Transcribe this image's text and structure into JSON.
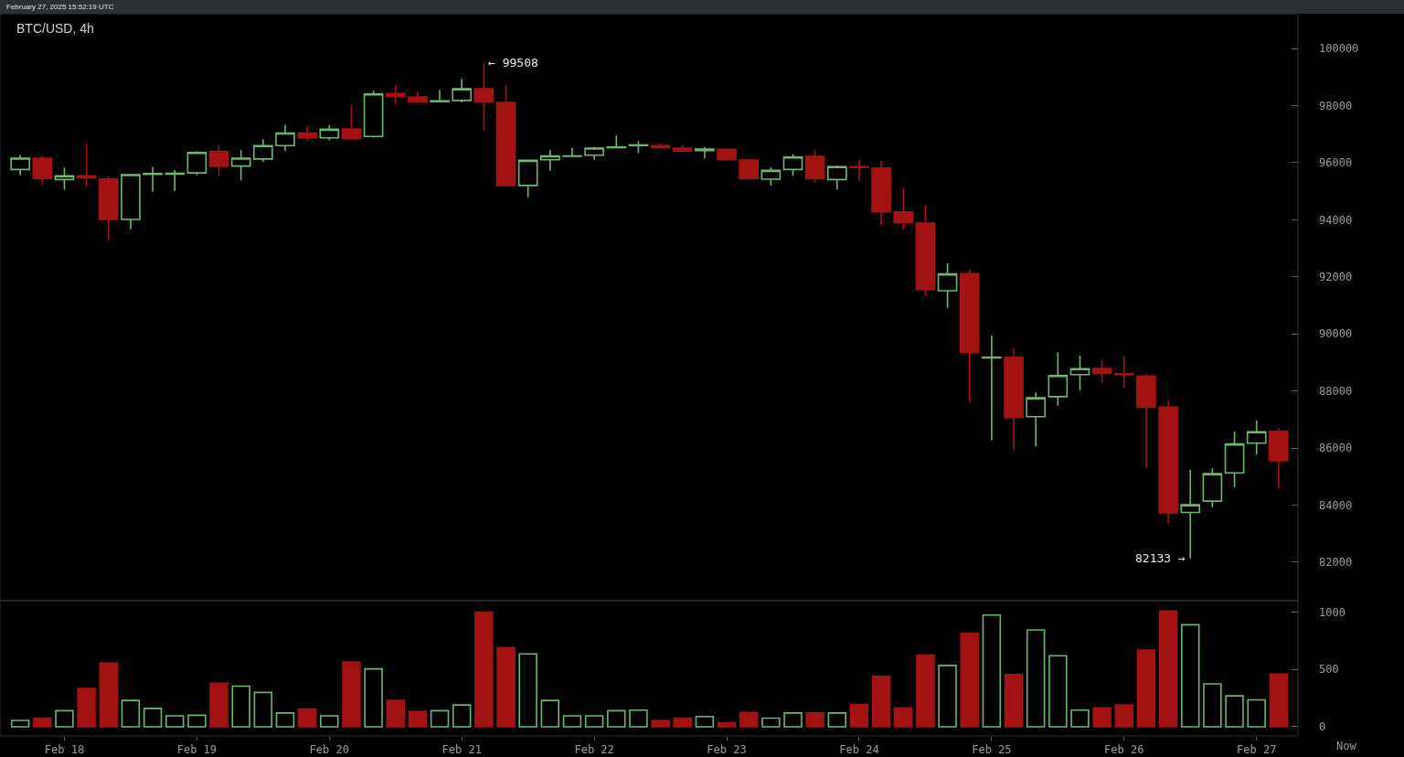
{
  "chart_data": [
    {
      "type": "candlestick",
      "title": "BTC/USD, 4h",
      "annotations": [
        "February 27, 2025 15:52:19 UTC",
        {
          "text": "← 99508",
          "x": "2025-02-21T04:00",
          "y": 99508
        },
        {
          "text": "82133 →",
          "x": "2025-02-26T12:00",
          "y": 82133
        }
      ],
      "x": [
        "2025-02-17T16:00",
        "2025-02-17T20:00",
        "2025-02-18T00:00",
        "2025-02-18T04:00",
        "2025-02-18T08:00",
        "2025-02-18T12:00",
        "2025-02-18T16:00",
        "2025-02-18T20:00",
        "2025-02-19T00:00",
        "2025-02-19T04:00",
        "2025-02-19T08:00",
        "2025-02-19T12:00",
        "2025-02-19T16:00",
        "2025-02-19T20:00",
        "2025-02-20T00:00",
        "2025-02-20T04:00",
        "2025-02-20T08:00",
        "2025-02-20T12:00",
        "2025-02-20T16:00",
        "2025-02-20T20:00",
        "2025-02-21T00:00",
        "2025-02-21T04:00",
        "2025-02-21T08:00",
        "2025-02-21T12:00",
        "2025-02-21T16:00",
        "2025-02-21T20:00",
        "2025-02-22T00:00",
        "2025-02-22T04:00",
        "2025-02-22T08:00",
        "2025-02-22T12:00",
        "2025-02-22T16:00",
        "2025-02-22T20:00",
        "2025-02-23T00:00",
        "2025-02-23T04:00",
        "2025-02-23T08:00",
        "2025-02-23T12:00",
        "2025-02-23T16:00",
        "2025-02-23T20:00",
        "2025-02-24T00:00",
        "2025-02-24T04:00",
        "2025-02-24T08:00",
        "2025-02-24T12:00",
        "2025-02-24T16:00",
        "2025-02-24T20:00",
        "2025-02-25T00:00",
        "2025-02-25T04:00",
        "2025-02-25T08:00",
        "2025-02-25T12:00",
        "2025-02-25T16:00",
        "2025-02-25T20:00",
        "2025-02-26T00:00",
        "2025-02-26T04:00",
        "2025-02-26T08:00",
        "2025-02-26T12:00",
        "2025-02-26T16:00",
        "2025-02-26T20:00",
        "2025-02-27T00:00",
        "2025-02-27T04:00"
      ],
      "ohlc": [
        [
          95760,
          96270,
          95560,
          96160
        ],
        [
          96160,
          96230,
          95240,
          95450
        ],
        [
          95410,
          95830,
          95060,
          95540
        ],
        [
          95540,
          96680,
          95150,
          95480
        ],
        [
          95430,
          95540,
          93300,
          94010
        ],
        [
          94010,
          95580,
          93670,
          95580
        ],
        [
          95590,
          95850,
          94980,
          95620
        ],
        [
          95600,
          95740,
          95010,
          95630
        ],
        [
          95640,
          96400,
          95560,
          96360
        ],
        [
          96390,
          96630,
          95530,
          95870
        ],
        [
          95880,
          96440,
          95380,
          96160
        ],
        [
          96130,
          96820,
          96030,
          96600
        ],
        [
          96600,
          97330,
          96410,
          97040
        ],
        [
          97040,
          97270,
          96770,
          96880
        ],
        [
          96870,
          97320,
          96790,
          97170
        ],
        [
          97180,
          98020,
          96810,
          96840
        ],
        [
          96920,
          98520,
          96880,
          98410
        ],
        [
          98420,
          98730,
          98040,
          98310
        ],
        [
          98300,
          98490,
          98120,
          98120
        ],
        [
          98140,
          98550,
          98120,
          98170
        ],
        [
          98180,
          98930,
          98110,
          98590
        ],
        [
          98590,
          99508,
          97130,
          98120
        ],
        [
          98110,
          98740,
          95160,
          95200
        ],
        [
          95200,
          96080,
          94790,
          96080
        ],
        [
          96100,
          96440,
          95720,
          96240
        ],
        [
          96220,
          96510,
          96200,
          96240
        ],
        [
          96260,
          96550,
          96100,
          96510
        ],
        [
          96530,
          96950,
          96510,
          96550
        ],
        [
          96600,
          96760,
          96330,
          96620
        ],
        [
          96600,
          96680,
          96510,
          96530
        ],
        [
          96510,
          96620,
          96390,
          96410
        ],
        [
          96420,
          96540,
          96150,
          96480
        ],
        [
          96470,
          96470,
          96100,
          96100
        ],
        [
          96090,
          96110,
          95420,
          95450
        ],
        [
          95420,
          95830,
          95200,
          95730
        ],
        [
          95760,
          96290,
          95530,
          96200
        ],
        [
          96220,
          96440,
          95310,
          95440
        ],
        [
          95410,
          95900,
          95050,
          95860
        ],
        [
          95860,
          96110,
          95370,
          95830
        ],
        [
          95810,
          96060,
          93820,
          94280
        ],
        [
          94270,
          95130,
          93670,
          93890
        ],
        [
          93880,
          94510,
          91310,
          91550
        ],
        [
          91510,
          92470,
          90910,
          92100
        ],
        [
          92110,
          92260,
          87600,
          89340
        ],
        [
          89160,
          89940,
          86270,
          89180
        ],
        [
          89180,
          89500,
          85950,
          87070
        ],
        [
          87100,
          87950,
          86060,
          87760
        ],
        [
          87800,
          89360,
          87480,
          88540
        ],
        [
          88570,
          89240,
          88030,
          88780
        ],
        [
          88790,
          89080,
          88290,
          88610
        ],
        [
          88600,
          89230,
          88110,
          88570
        ],
        [
          88520,
          88590,
          85310,
          87430
        ],
        [
          87430,
          87660,
          83350,
          83730
        ],
        [
          83740,
          85230,
          82133,
          84010
        ],
        [
          84140,
          85290,
          83920,
          85100
        ],
        [
          85130,
          86580,
          84620,
          86140
        ],
        [
          86170,
          86970,
          85780,
          86570
        ],
        [
          86580,
          86700,
          84580,
          85550
        ]
      ],
      "colors": [
        "#6fb66f",
        "#a31313",
        "#6fb66f",
        "#a31313",
        "#a31313",
        "#6fb66f",
        "#6fb66f",
        "#6fb66f",
        "#6fb66f",
        "#a31313",
        "#6fb66f",
        "#6fb66f",
        "#6fb66f",
        "#a31313",
        "#6fb66f",
        "#a31313",
        "#6fb66f",
        "#a31313",
        "#a31313",
        "#6fb66f",
        "#6fb66f",
        "#a31313",
        "#a31313",
        "#6fb66f",
        "#6fb66f",
        "#6fb66f",
        "#6fb66f",
        "#6fb66f",
        "#6fb66f",
        "#a31313",
        "#a31313",
        "#6fb66f",
        "#a31313",
        "#a31313",
        "#6fb66f",
        "#6fb66f",
        "#a31313",
        "#6fb66f",
        "#a31313",
        "#a31313",
        "#a31313",
        "#a31313",
        "#6fb66f",
        "#a31313",
        "#6fb66f",
        "#a31313",
        "#6fb66f",
        "#6fb66f",
        "#6fb66f",
        "#a31313",
        "#a31313",
        "#a31313",
        "#a31313",
        "#6fb66f",
        "#6fb66f",
        "#6fb66f",
        "#6fb66f",
        "#a31313"
      ],
      "xlim": [
        "2025-02-17T12:20",
        "2025-02-27T07:30"
      ],
      "ylim": [
        80650,
        101220
      ],
      "yticks": [
        82000,
        84000,
        86000,
        88000,
        90000,
        92000,
        94000,
        96000,
        98000,
        100000
      ],
      "tick_labels": "y",
      "grid": false
    },
    {
      "type": "bar",
      "annotations": [
        "Now"
      ],
      "x": [
        "2025-02-17T16:00",
        "2025-02-17T20:00",
        "2025-02-18T00:00",
        "2025-02-18T04:00",
        "2025-02-18T08:00",
        "2025-02-18T12:00",
        "2025-02-18T16:00",
        "2025-02-18T20:00",
        "2025-02-19T00:00",
        "2025-02-19T04:00",
        "2025-02-19T08:00",
        "2025-02-19T12:00",
        "2025-02-19T16:00",
        "2025-02-19T20:00",
        "2025-02-20T00:00",
        "2025-02-20T04:00",
        "2025-02-20T08:00",
        "2025-02-20T12:00",
        "2025-02-20T16:00",
        "2025-02-20T20:00",
        "2025-02-21T00:00",
        "2025-02-21T04:00",
        "2025-02-21T08:00",
        "2025-02-21T12:00",
        "2025-02-21T16:00",
        "2025-02-21T20:00",
        "2025-02-22T00:00",
        "2025-02-22T04:00",
        "2025-02-22T08:00",
        "2025-02-22T12:00",
        "2025-02-22T16:00",
        "2025-02-22T20:00",
        "2025-02-23T00:00",
        "2025-02-23T04:00",
        "2025-02-23T08:00",
        "2025-02-23T12:00",
        "2025-02-23T16:00",
        "2025-02-23T20:00",
        "2025-02-24T00:00",
        "2025-02-24T04:00",
        "2025-02-24T08:00",
        "2025-02-24T12:00",
        "2025-02-24T16:00",
        "2025-02-24T20:00",
        "2025-02-25T00:00",
        "2025-02-25T04:00",
        "2025-02-25T08:00",
        "2025-02-25T12:00",
        "2025-02-25T16:00",
        "2025-02-25T20:00",
        "2025-02-26T00:00",
        "2025-02-26T04:00",
        "2025-02-26T08:00",
        "2025-02-26T12:00",
        "2025-02-26T16:00",
        "2025-02-26T20:00",
        "2025-02-27T00:00",
        "2025-02-27T04:00"
      ],
      "values": [
        55,
        75,
        140,
        335,
        555,
        230,
        160,
        95,
        100,
        380,
        355,
        300,
        120,
        155,
        95,
        565,
        505,
        230,
        135,
        140,
        190,
        1000,
        690,
        635,
        230,
        95,
        95,
        140,
        145,
        55,
        75,
        90,
        35,
        125,
        75,
        120,
        120,
        120,
        195,
        440,
        165,
        625,
        535,
        815,
        975,
        455,
        845,
        620,
        145,
        165,
        190,
        670,
        1010,
        890,
        375,
        270,
        235,
        460
      ],
      "colors": [
        "#6fb66f",
        "#a31313",
        "#6fb66f",
        "#a31313",
        "#a31313",
        "#6fb66f",
        "#6fb66f",
        "#6fb66f",
        "#6fb66f",
        "#a31313",
        "#6fb66f",
        "#6fb66f",
        "#6fb66f",
        "#a31313",
        "#6fb66f",
        "#a31313",
        "#6fb66f",
        "#a31313",
        "#a31313",
        "#6fb66f",
        "#6fb66f",
        "#a31313",
        "#a31313",
        "#6fb66f",
        "#6fb66f",
        "#6fb66f",
        "#6fb66f",
        "#6fb66f",
        "#6fb66f",
        "#a31313",
        "#a31313",
        "#6fb66f",
        "#a31313",
        "#a31313",
        "#6fb66f",
        "#6fb66f",
        "#a31313",
        "#6fb66f",
        "#a31313",
        "#a31313",
        "#a31313",
        "#a31313",
        "#6fb66f",
        "#a31313",
        "#6fb66f",
        "#a31313",
        "#6fb66f",
        "#6fb66f",
        "#6fb66f",
        "#a31313",
        "#a31313",
        "#a31313",
        "#a31313",
        "#6fb66f",
        "#6fb66f",
        "#6fb66f",
        "#6fb66f",
        "#a31313"
      ],
      "xlim": [
        "2025-02-17T12:20",
        "2025-02-27T07:30"
      ],
      "xticks": [
        {
          "value": "2025-02-18",
          "label": "Feb 18"
        },
        {
          "value": "2025-02-19",
          "label": "Feb 19"
        },
        {
          "value": "2025-02-20",
          "label": "Feb 20"
        },
        {
          "value": "2025-02-21",
          "label": "Feb 21"
        },
        {
          "value": "2025-02-22",
          "label": "Feb 22"
        },
        {
          "value": "2025-02-23",
          "label": "Feb 23"
        },
        {
          "value": "2025-02-24",
          "label": "Feb 24"
        },
        {
          "value": "2025-02-25",
          "label": "Feb 25"
        },
        {
          "value": "2025-02-26",
          "label": "Feb 26"
        },
        {
          "value": "2025-02-27",
          "label": "Feb 27"
        }
      ],
      "ylim": [
        -80,
        1100
      ],
      "yticks": [
        0,
        500,
        1000
      ],
      "grid": false
    }
  ]
}
